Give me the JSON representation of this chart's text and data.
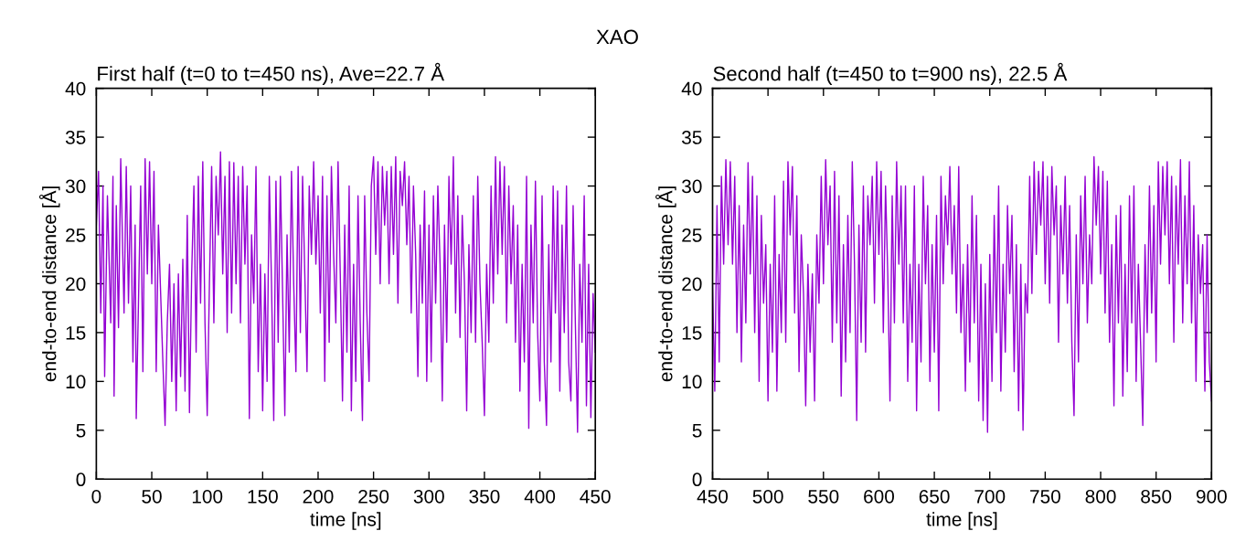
{
  "chart_data": [
    {
      "type": "line",
      "title": "First half (t=0 to t=450 ns), Ave=22.7 Å",
      "xlabel": "time [ns]",
      "ylabel": "end-to-end distance [Å]",
      "annotations": [
        "XAO"
      ],
      "xlim": [
        0,
        450
      ],
      "xticks": [
        0,
        50,
        100,
        150,
        200,
        250,
        300,
        350,
        400,
        450
      ],
      "ylim": [
        0,
        40
      ],
      "yticks": [
        0,
        5,
        10,
        15,
        20,
        25,
        30,
        35,
        40
      ],
      "grid": false,
      "marker": "none",
      "line_style": "solid",
      "series": [
        {
          "color": "#9400d3",
          "x": [
            0,
            2,
            4,
            6,
            7.5,
            10,
            13,
            15,
            16,
            18,
            20,
            22,
            25,
            27,
            29,
            31,
            33,
            35,
            36,
            38,
            40,
            42,
            44,
            46,
            48,
            50,
            52,
            54,
            56,
            58,
            60,
            62,
            64,
            66,
            68,
            70,
            72,
            74,
            76,
            78,
            80,
            82,
            84,
            86,
            88,
            90,
            92,
            94,
            96,
            98,
            100,
            102,
            104,
            106,
            108,
            110,
            112,
            114,
            116,
            118,
            120,
            122,
            124,
            126,
            128,
            130,
            132,
            134,
            136,
            138,
            140,
            142,
            144,
            146,
            148,
            150,
            152,
            154,
            156,
            158,
            160,
            162,
            164,
            166,
            168,
            170,
            172,
            174,
            176,
            178,
            180,
            182,
            184,
            186,
            188,
            190,
            192,
            194,
            196,
            198,
            200,
            202,
            204,
            206,
            208,
            210,
            212,
            214,
            216,
            218,
            220,
            222,
            224,
            226,
            228,
            230,
            232,
            234,
            236,
            238,
            240,
            242,
            244,
            246,
            248,
            250,
            252,
            254,
            256,
            258,
            260,
            262,
            264,
            266,
            268,
            270,
            272,
            274,
            276,
            278,
            280,
            282,
            284,
            286,
            288,
            290,
            292,
            294,
            296,
            298,
            300,
            302,
            304,
            306,
            308,
            310,
            312,
            314,
            316,
            318,
            320,
            322,
            324,
            326,
            328,
            330,
            332,
            334,
            336,
            338,
            340,
            342,
            344,
            346,
            348,
            350,
            352,
            354,
            356,
            358,
            360,
            362,
            364,
            366,
            368,
            370,
            372,
            374,
            376,
            378,
            380,
            382,
            384,
            386,
            388,
            390,
            392,
            394,
            396,
            398,
            400,
            402,
            404,
            406,
            408,
            410,
            412,
            414,
            416,
            418,
            420,
            422,
            424,
            426,
            428,
            430,
            432,
            434,
            436,
            438,
            440,
            442,
            444,
            446,
            448,
            450
          ],
          "values": [
            26,
            31.5,
            17,
            30,
            10.5,
            29,
            16,
            31,
            8.5,
            28,
            15.5,
            32.8,
            17,
            32,
            18,
            30,
            12,
            26,
            6.2,
            18,
            30,
            11,
            32.8,
            21,
            32.5,
            20,
            31.5,
            11,
            26,
            19,
            12,
            5.5,
            16,
            22,
            10,
            20,
            7,
            21,
            10.5,
            22.5,
            9,
            27,
            6.8,
            21,
            30,
            13,
            31,
            18,
            32.5,
            16,
            6.5,
            20,
            32,
            16,
            31,
            25,
            33.5,
            21,
            31,
            15,
            32.5,
            17,
            32.4,
            20,
            31,
            16,
            32,
            22,
            30,
            6.2,
            25,
            18,
            32,
            11,
            22,
            7,
            21,
            10,
            31,
            20,
            6,
            30.5,
            14,
            31,
            19,
            6.5,
            25,
            13,
            31.5,
            20,
            11,
            32,
            15,
            31,
            21,
            11,
            30,
            23,
            32.5,
            22,
            29,
            17,
            31,
            10,
            29,
            14,
            32,
            23,
            16,
            32.5,
            21,
            8,
            26,
            13,
            30,
            7,
            22,
            10,
            29,
            16,
            6,
            29,
            17,
            10,
            30,
            33,
            23,
            32.5,
            20,
            32,
            26,
            31.5,
            20,
            32,
            23,
            33,
            18,
            31.5,
            28,
            32.5,
            24,
            31,
            17,
            30,
            23,
            10.5,
            26,
            18,
            29.5,
            10,
            26,
            12,
            29,
            18,
            30,
            22,
            8,
            26,
            14,
            31,
            22,
            33,
            17,
            29,
            14.5,
            27,
            20,
            7,
            24,
            15,
            29,
            14,
            31,
            20,
            14,
            6.5,
            22,
            14,
            30,
            18,
            33,
            21,
            32.5,
            23,
            32,
            16,
            30,
            20,
            28,
            14,
            26,
            9,
            22,
            12,
            31,
            5.2,
            26,
            16,
            30.5,
            15,
            8,
            29,
            12,
            5.5,
            24,
            12,
            30,
            17,
            29.5,
            9,
            26,
            15,
            30,
            12,
            8,
            28,
            16,
            4.8,
            22,
            14,
            29,
            7.5,
            22,
            6.3,
            19,
            13
          ]
        }
      ]
    },
    {
      "type": "line",
      "title": "Second half (t=450 to t=900 ns), 22.5 Å",
      "xlabel": "time [ns]",
      "ylabel": "end-to-end distance [Å]",
      "xlim": [
        450,
        900
      ],
      "xticks": [
        450,
        500,
        550,
        600,
        650,
        700,
        750,
        800,
        850,
        900
      ],
      "ylim": [
        0,
        40
      ],
      "yticks": [
        0,
        5,
        10,
        15,
        20,
        25,
        30,
        35,
        40
      ],
      "grid": false,
      "marker": "none",
      "line_style": "solid",
      "series": [
        {
          "color": "#9400d3",
          "x": [
            450,
            452,
            454,
            456,
            458,
            460,
            462,
            464,
            466,
            468,
            470,
            472,
            474,
            476,
            478,
            480,
            482,
            484,
            486,
            488,
            490,
            492,
            494,
            496,
            498,
            500,
            502,
            504,
            506,
            508,
            510,
            512,
            514,
            516,
            518,
            520,
            522,
            524,
            526,
            528,
            530,
            532,
            534,
            536,
            538,
            540,
            542,
            544,
            546,
            548,
            550,
            552,
            554,
            556,
            558,
            560,
            562,
            564,
            566,
            568,
            570,
            572,
            574,
            576,
            578,
            580,
            582,
            584,
            586,
            588,
            590,
            592,
            594,
            596,
            598,
            600,
            602,
            604,
            606,
            608,
            610,
            612,
            614,
            616,
            618,
            620,
            622,
            624,
            626,
            628,
            630,
            632,
            634,
            636,
            638,
            640,
            642,
            644,
            646,
            648,
            650,
            652,
            654,
            656,
            658,
            660,
            662,
            664,
            666,
            668,
            670,
            672,
            674,
            676,
            678,
            680,
            682,
            684,
            686,
            688,
            690,
            692,
            694,
            696,
            698,
            700,
            702,
            704,
            706,
            708,
            710,
            712,
            714,
            716,
            718,
            720,
            722,
            724,
            726,
            728,
            730,
            732,
            734,
            736,
            738,
            740,
            742,
            744,
            746,
            748,
            750,
            752,
            754,
            756,
            758,
            760,
            762,
            764,
            766,
            768,
            770,
            772,
            774,
            776,
            778,
            780,
            782,
            784,
            786,
            788,
            790,
            792,
            794,
            796,
            798,
            800,
            802,
            804,
            806,
            808,
            810,
            812,
            814,
            816,
            818,
            820,
            822,
            824,
            826,
            828,
            830,
            832,
            834,
            836,
            838,
            840,
            842,
            844,
            846,
            848,
            850,
            852,
            854,
            856,
            858,
            860,
            862,
            864,
            866,
            868,
            870,
            872,
            874,
            876,
            878,
            880,
            882,
            884,
            886,
            888,
            890,
            892,
            894,
            896,
            898,
            900
          ],
          "values": [
            20,
            9,
            28,
            12,
            31,
            22,
            32.7,
            24,
            32.5,
            22,
            31,
            15,
            28,
            12,
            26,
            16,
            32.4,
            21,
            31,
            15,
            29,
            10,
            27,
            18,
            24,
            8,
            22,
            13,
            29,
            9,
            23,
            15,
            30.5,
            14,
            32.5,
            25,
            32,
            17,
            29,
            11,
            25,
            19,
            7.5,
            22,
            13,
            21,
            8,
            25,
            18,
            31,
            20,
            32.7,
            24,
            30,
            14,
            31.5,
            16,
            29,
            8.5,
            24,
            12,
            27,
            15,
            32.5,
            22,
            6,
            26,
            14,
            30,
            13,
            29,
            24,
            31,
            18,
            32.5,
            23,
            31.5,
            15,
            30,
            21,
            8,
            29,
            16,
            32.5,
            22,
            30,
            16,
            30,
            10,
            22,
            14,
            30,
            7,
            22,
            12,
            31,
            20,
            28,
            10,
            24,
            13,
            27,
            7,
            31,
            20,
            29,
            24,
            32,
            21,
            28,
            17,
            32,
            15,
            22,
            9,
            24,
            12,
            29,
            16,
            27,
            8,
            22,
            6,
            20,
            4.8,
            23,
            10,
            27,
            15,
            30,
            9,
            22,
            13,
            28,
            19,
            27,
            11,
            24,
            7,
            22,
            5,
            20,
            17,
            31,
            19,
            32.5,
            23,
            31.5,
            26,
            32.5,
            20,
            31,
            18,
            32,
            25,
            30,
            14,
            28,
            21,
            31,
            18,
            28,
            14,
            6.5,
            25,
            12,
            29,
            20,
            31,
            16,
            25,
            20,
            33,
            26,
            32,
            21,
            31.5,
            17,
            30.5,
            14,
            24,
            7.5,
            27,
            16,
            28,
            8.5,
            22,
            11,
            29,
            16,
            30,
            10,
            22,
            14,
            5.5,
            24,
            15,
            30,
            17,
            28,
            12,
            32.5,
            22,
            32,
            25,
            32.5,
            20,
            31,
            14,
            30,
            22,
            32.7,
            16,
            29,
            20,
            32.5,
            16,
            28,
            10,
            25,
            19,
            24,
            9,
            25,
            12,
            8
          ]
        }
      ]
    }
  ]
}
